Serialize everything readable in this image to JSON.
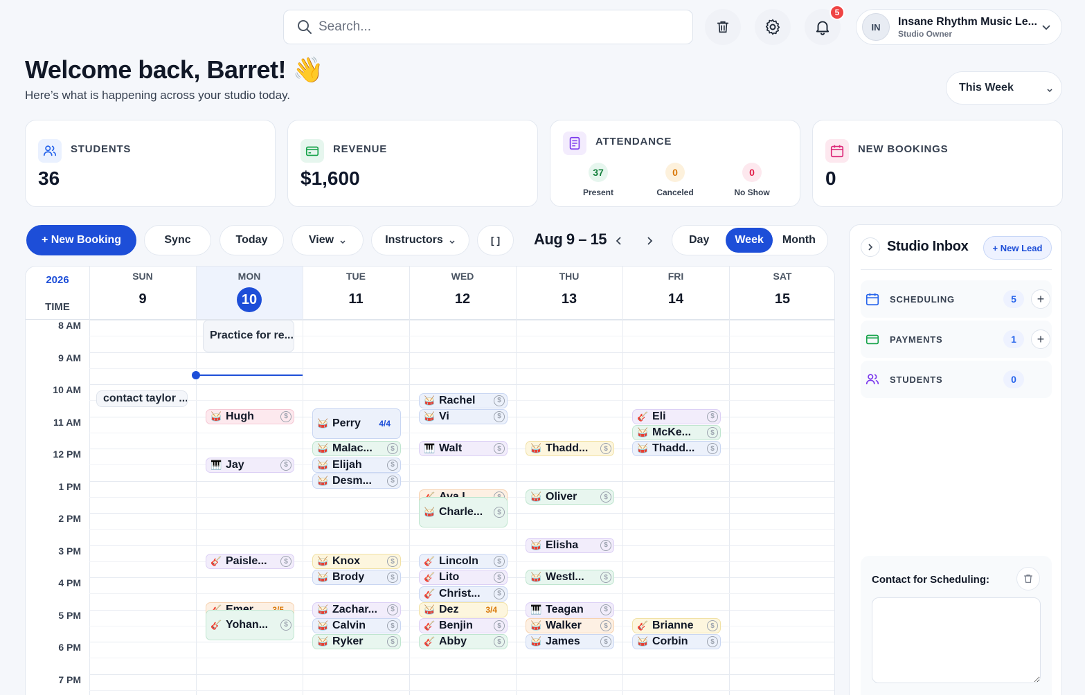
{
  "header": {
    "search_placeholder": "Search...",
    "notifications_count": "5",
    "profile": {
      "initials": "IN",
      "name": "Insane Rhythm Music Le...",
      "role": "Studio Owner"
    }
  },
  "welcome": {
    "title": "Welcome back, Barret! 👋",
    "subtitle": "Here’s what is happening across your studio today."
  },
  "range_select": "This Week",
  "stats": {
    "students": {
      "label": "STUDENTS",
      "value": "36"
    },
    "revenue": {
      "label": "REVENUE",
      "value": "$1,600"
    },
    "attendance": {
      "label": "ATTENDANCE",
      "present": "37",
      "present_label": "Present",
      "canceled": "0",
      "canceled_label": "Canceled",
      "noshow": "0",
      "noshow_label": "No Show"
    },
    "bookings": {
      "label": "NEW BOOKINGS",
      "value": "0"
    }
  },
  "toolbar": {
    "new_booking": "+ New Booking",
    "sync": "Sync",
    "today": "Today",
    "view": "View",
    "instructors": "Instructors",
    "bracket": "[ ]",
    "date_range": "Aug 9 – 15",
    "day": "Day",
    "week": "Week",
    "month": "Month"
  },
  "calendar": {
    "year": "2026",
    "time_label": "TIME",
    "days": [
      {
        "name": "SUN",
        "date": "9"
      },
      {
        "name": "MON",
        "date": "10"
      },
      {
        "name": "TUE",
        "date": "11"
      },
      {
        "name": "WED",
        "date": "12"
      },
      {
        "name": "THU",
        "date": "13"
      },
      {
        "name": "FRI",
        "date": "14"
      },
      {
        "name": "SAT",
        "date": "15"
      }
    ],
    "hours": [
      "8 AM",
      "9 AM",
      "10 AM",
      "11 AM",
      "12 PM",
      "1 PM",
      "2 PM",
      "3 PM",
      "4 PM",
      "5 PM",
      "6 PM",
      "7 PM"
    ],
    "note_events": [
      {
        "label": "Practice for re...",
        "day": 1,
        "start": 8.0,
        "end": 9.0
      },
      {
        "label": "contact taylor ...",
        "day": 0,
        "start": 10.2,
        "end": 10.7
      }
    ],
    "events": [
      {
        "name": "Hugh",
        "day": 1,
        "start": 10.75,
        "icon": "drum",
        "color": "pink"
      },
      {
        "name": "Jay",
        "day": 1,
        "start": 12.25,
        "icon": "piano",
        "color": "purple"
      },
      {
        "name": "Paisle...",
        "day": 1,
        "start": 15.25,
        "icon": "guitar",
        "color": "purple"
      },
      {
        "name": "Emer...",
        "day": 1,
        "start": 16.75,
        "icon": "guitar",
        "color": "orange",
        "count": "3/5"
      },
      {
        "name": "Yohan...",
        "day": 1,
        "start": 17.0,
        "end": 18.0,
        "icon": "guitar",
        "color": "green"
      },
      {
        "name": "Perry",
        "day": 2,
        "start": 10.75,
        "end": 11.75,
        "icon": "drum",
        "color": "blue",
        "count": "4/4"
      },
      {
        "name": "Malac...",
        "day": 2,
        "start": 11.75,
        "icon": "drum",
        "color": "green"
      },
      {
        "name": "Elijah",
        "day": 2,
        "start": 12.25,
        "icon": "drum",
        "color": "blue"
      },
      {
        "name": "Desm...",
        "day": 2,
        "start": 12.75,
        "icon": "drum",
        "color": "blue"
      },
      {
        "name": "Knox",
        "day": 2,
        "start": 15.25,
        "icon": "drum",
        "color": "yellow"
      },
      {
        "name": "Brody",
        "day": 2,
        "start": 15.75,
        "icon": "drum",
        "color": "blue"
      },
      {
        "name": "Zachar...",
        "day": 2,
        "start": 16.75,
        "icon": "drum",
        "color": "purple"
      },
      {
        "name": "Calvin",
        "day": 2,
        "start": 17.25,
        "icon": "drum",
        "color": "blue"
      },
      {
        "name": "Ryker",
        "day": 2,
        "start": 17.75,
        "icon": "drum",
        "color": "green"
      },
      {
        "name": "Rachel",
        "day": 3,
        "start": 10.25,
        "icon": "drum",
        "color": "blue"
      },
      {
        "name": "Vi",
        "day": 3,
        "start": 10.75,
        "icon": "drum",
        "color": "blue"
      },
      {
        "name": "Walt",
        "day": 3,
        "start": 11.75,
        "icon": "piano",
        "color": "purple"
      },
      {
        "name": "Ava L...",
        "day": 3,
        "start": 13.25,
        "icon": "guitar",
        "color": "orange"
      },
      {
        "name": "Charle...",
        "day": 3,
        "start": 13.5,
        "end": 14.5,
        "icon": "drum",
        "color": "green"
      },
      {
        "name": "Lincoln",
        "day": 3,
        "start": 15.25,
        "icon": "guitar",
        "color": "blue"
      },
      {
        "name": "Lito",
        "day": 3,
        "start": 15.75,
        "icon": "bass",
        "color": "purple"
      },
      {
        "name": "Christ...",
        "day": 3,
        "start": 16.25,
        "icon": "bass",
        "color": "blue"
      },
      {
        "name": "Dez",
        "day": 3,
        "start": 16.75,
        "icon": "drum",
        "color": "yellow",
        "count": "3/4"
      },
      {
        "name": "Benjin",
        "day": 3,
        "start": 17.25,
        "icon": "guitar",
        "color": "purple"
      },
      {
        "name": "Abby",
        "day": 3,
        "start": 17.75,
        "icon": "guitar",
        "color": "green"
      },
      {
        "name": "Thadd...",
        "day": 4,
        "start": 11.75,
        "icon": "drum",
        "color": "yellow"
      },
      {
        "name": "Oliver",
        "day": 4,
        "start": 13.25,
        "icon": "drum",
        "color": "green"
      },
      {
        "name": "Elisha",
        "day": 4,
        "start": 14.75,
        "icon": "drum",
        "color": "purple"
      },
      {
        "name": "Westl...",
        "day": 4,
        "start": 15.75,
        "icon": "drum",
        "color": "green"
      },
      {
        "name": "Teagan",
        "day": 4,
        "start": 16.75,
        "icon": "piano",
        "color": "purple"
      },
      {
        "name": "Walker",
        "day": 4,
        "start": 17.25,
        "icon": "drum",
        "color": "orange"
      },
      {
        "name": "James",
        "day": 4,
        "start": 17.75,
        "icon": "drum",
        "color": "blue"
      },
      {
        "name": "Eli",
        "day": 5,
        "start": 10.75,
        "icon": "guitar",
        "color": "purple"
      },
      {
        "name": "McKe...",
        "day": 5,
        "start": 11.25,
        "icon": "drum",
        "color": "green"
      },
      {
        "name": "Thadd...",
        "day": 5,
        "start": 11.75,
        "icon": "drum",
        "color": "blue"
      },
      {
        "name": "Brianne",
        "day": 5,
        "start": 17.25,
        "icon": "guitar",
        "color": "yellow"
      },
      {
        "name": "Corbin",
        "day": 5,
        "start": 17.75,
        "icon": "drum",
        "color": "blue"
      }
    ]
  },
  "inbox": {
    "title": "Studio Inbox",
    "new_lead": "+ New Lead",
    "rows": [
      {
        "label": "SCHEDULING",
        "count": "5"
      },
      {
        "label": "PAYMENTS",
        "count": "1"
      },
      {
        "label": "STUDENTS",
        "count": "0"
      }
    ],
    "contact_title": "Contact for Scheduling:"
  },
  "colors": {
    "accent": "#1d4ed8",
    "pink": "#fce7ec",
    "purple": "#f1ecfb",
    "orange": "#fdefe2",
    "green": "#e6f6ee",
    "yellow": "#fdf6dd",
    "blue": "#eaf0fb"
  }
}
